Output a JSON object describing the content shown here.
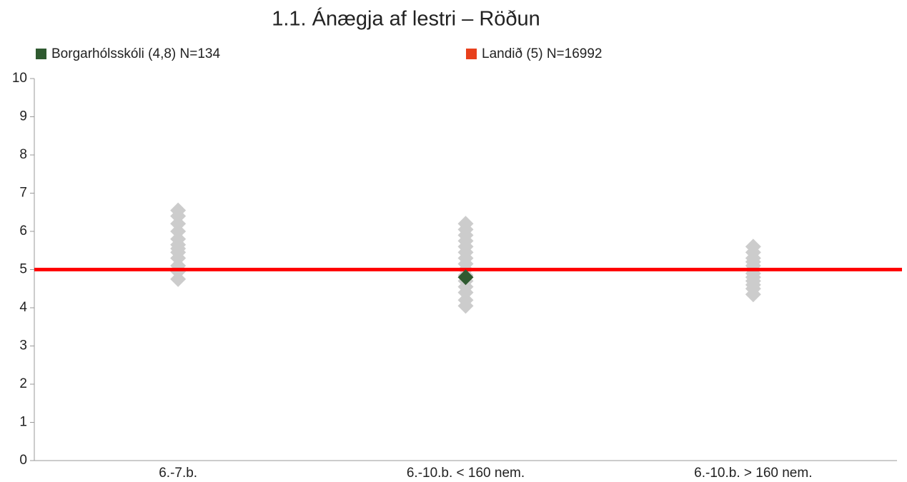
{
  "chart_data": {
    "type": "strip",
    "title": "1.1. Ánægja af lestri – Röðun",
    "categories": [
      "6.-7.b.",
      "6.-10.b. < 160 nem.",
      "6.-10.b. > 160 nem."
    ],
    "ylim": [
      0,
      10
    ],
    "yticks": [
      0,
      1,
      2,
      3,
      4,
      5,
      6,
      7,
      8,
      9,
      10
    ],
    "other_schools": {
      "color": "#cccccc",
      "values": [
        [
          4.75,
          4.95,
          5.1,
          5.3,
          5.45,
          5.55,
          5.65,
          5.8,
          6.0,
          6.2,
          6.4,
          6.55
        ],
        [
          4.05,
          4.2,
          4.4,
          4.55,
          4.7,
          4.85,
          5.0,
          5.15,
          5.3,
          5.45,
          5.6,
          5.75,
          5.9,
          6.05,
          6.2
        ],
        [
          4.35,
          4.5,
          4.6,
          4.7,
          4.8,
          4.9,
          5.0,
          5.1,
          5.2,
          5.3,
          5.45,
          5.6
        ]
      ]
    },
    "series": [
      {
        "name": "Borgarhólsskóli (4,8) N=134",
        "color": "#2f5a30",
        "values": [
          null,
          4.8,
          null
        ]
      }
    ],
    "reference": {
      "name": "Landið (5) N=16992",
      "color": "#e8401c",
      "line_color": "#ff0000",
      "value": 5
    }
  }
}
